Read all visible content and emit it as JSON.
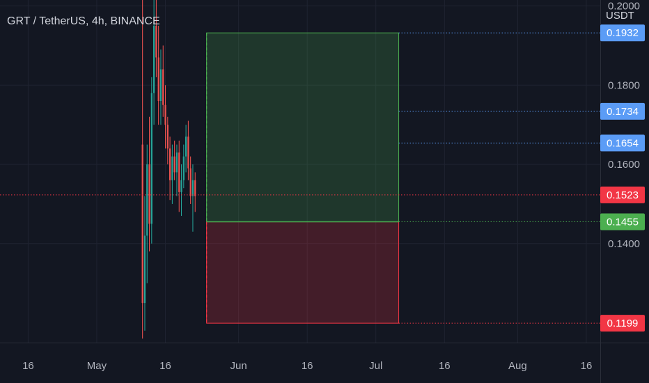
{
  "header": {
    "symbol_title": "GRT / TetherUS, 4h, BINANCE",
    "currency": "USDT"
  },
  "chart_data": {
    "type": "candlestick",
    "title": "GRT / TetherUS, 4h, BINANCE",
    "ylabel": "USDT",
    "ylim": [
      0.115,
      0.2015
    ],
    "grid": true,
    "x_ticks": [
      {
        "date": "2021-04-16",
        "label": "16"
      },
      {
        "date": "2021-05-01",
        "label": "May"
      },
      {
        "date": "2021-05-16",
        "label": "16"
      },
      {
        "date": "2021-06-01",
        "label": "Jun"
      },
      {
        "date": "2021-06-16",
        "label": "16"
      },
      {
        "date": "2021-07-01",
        "label": "Jul"
      },
      {
        "date": "2021-07-16",
        "label": "16"
      },
      {
        "date": "2021-08-01",
        "label": "Aug"
      },
      {
        "date": "2021-08-16",
        "label": "16"
      }
    ],
    "y_ticks": [
      "0.1400",
      "0.1600",
      "0.1800",
      "0.2000"
    ],
    "price_labels": [
      {
        "value": "0.1932",
        "color": "#5b9cf6",
        "line": "dotted"
      },
      {
        "value": "0.1734",
        "color": "#5b9cf6",
        "line": "dotted"
      },
      {
        "value": "0.1654",
        "color": "#5b9cf6",
        "line": "dotted"
      },
      {
        "value": "0.1523",
        "color": "#f23645",
        "line": "dotted"
      },
      {
        "value": "0.1455",
        "color": "#4caf50",
        "line": "dotted"
      },
      {
        "value": "0.1199",
        "color": "#f23645",
        "line": "dotted"
      }
    ],
    "position_tool": {
      "start_date": "2021-05-25",
      "end_date": "2021-07-06",
      "entry": 0.1455,
      "target": 0.1932,
      "stop": 0.1199,
      "profit_color": "#4caf50",
      "loss_color": "#f23645"
    },
    "candles": [
      {
        "date": "2021-05-11T00:00",
        "open": 0.165,
        "high": 0.203,
        "low": 0.116,
        "close": 0.125
      },
      {
        "date": "2021-05-11T12:00",
        "open": 0.125,
        "high": 0.152,
        "low": 0.118,
        "close": 0.142
      },
      {
        "date": "2021-05-12T00:00",
        "open": 0.142,
        "high": 0.165,
        "low": 0.13,
        "close": 0.16
      },
      {
        "date": "2021-05-12T12:00",
        "open": 0.16,
        "high": 0.172,
        "low": 0.138,
        "close": 0.145
      },
      {
        "date": "2021-05-13T00:00",
        "open": 0.145,
        "high": 0.182,
        "low": 0.14,
        "close": 0.178
      },
      {
        "date": "2021-05-13T12:00",
        "open": 0.178,
        "high": 0.203,
        "low": 0.17,
        "close": 0.195
      },
      {
        "date": "2021-05-14T00:00",
        "open": 0.195,
        "high": 0.203,
        "low": 0.182,
        "close": 0.187
      },
      {
        "date": "2021-05-14T12:00",
        "open": 0.187,
        "high": 0.195,
        "low": 0.17,
        "close": 0.176
      },
      {
        "date": "2021-05-15T00:00",
        "open": 0.176,
        "high": 0.189,
        "low": 0.17,
        "close": 0.184
      },
      {
        "date": "2021-05-15T12:00",
        "open": 0.184,
        "high": 0.19,
        "low": 0.172,
        "close": 0.175
      },
      {
        "date": "2021-05-16T00:00",
        "open": 0.175,
        "high": 0.18,
        "low": 0.164,
        "close": 0.17
      },
      {
        "date": "2021-05-16T12:00",
        "open": 0.17,
        "high": 0.172,
        "low": 0.16,
        "close": 0.164
      },
      {
        "date": "2021-05-17T00:00",
        "open": 0.164,
        "high": 0.167,
        "low": 0.151,
        "close": 0.156
      },
      {
        "date": "2021-05-17T12:00",
        "open": 0.156,
        "high": 0.165,
        "low": 0.15,
        "close": 0.162
      },
      {
        "date": "2021-05-18T00:00",
        "open": 0.162,
        "high": 0.166,
        "low": 0.156,
        "close": 0.158
      },
      {
        "date": "2021-05-18T12:00",
        "open": 0.158,
        "high": 0.165,
        "low": 0.152,
        "close": 0.163
      },
      {
        "date": "2021-05-19T00:00",
        "open": 0.163,
        "high": 0.166,
        "low": 0.148,
        "close": 0.153
      },
      {
        "date": "2021-05-19T12:00",
        "open": 0.153,
        "high": 0.16,
        "low": 0.147,
        "close": 0.156
      },
      {
        "date": "2021-05-20T00:00",
        "open": 0.156,
        "high": 0.165,
        "low": 0.154,
        "close": 0.162
      },
      {
        "date": "2021-05-20T12:00",
        "open": 0.162,
        "high": 0.17,
        "low": 0.158,
        "close": 0.167
      },
      {
        "date": "2021-05-21T00:00",
        "open": 0.167,
        "high": 0.171,
        "low": 0.156,
        "close": 0.159
      },
      {
        "date": "2021-05-21T12:00",
        "open": 0.159,
        "high": 0.162,
        "low": 0.15,
        "close": 0.152
      },
      {
        "date": "2021-05-22T00:00",
        "open": 0.152,
        "high": 0.16,
        "low": 0.143,
        "close": 0.156
      },
      {
        "date": "2021-05-22T12:00",
        "open": 0.156,
        "high": 0.158,
        "low": 0.148,
        "close": 0.152
      }
    ]
  }
}
